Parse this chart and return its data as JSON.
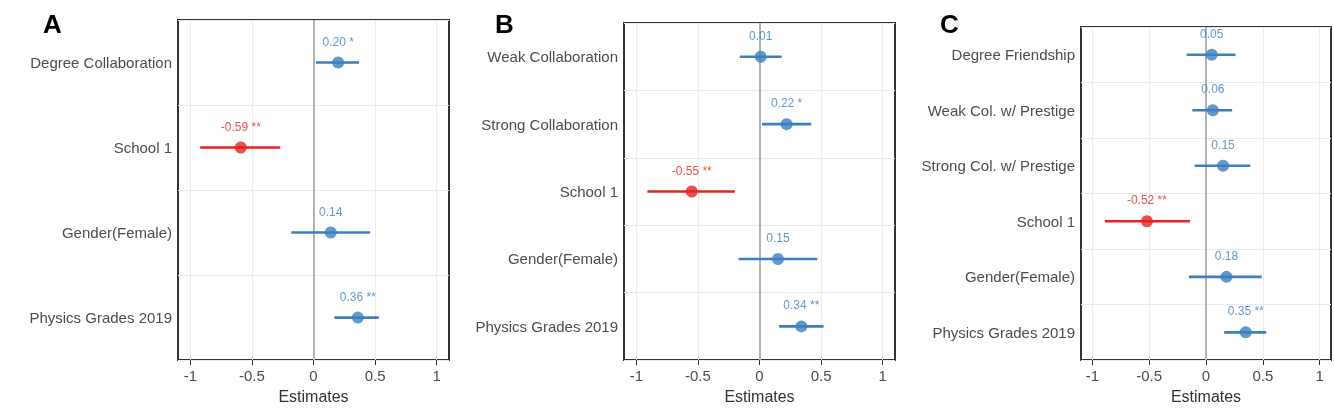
{
  "chart_data": [
    {
      "type": "scatter",
      "title": "A",
      "orientation": "horizontal",
      "marker": "circle",
      "grid": true,
      "xlabel": "Estimates",
      "xlim": [
        -1.1,
        1.1
      ],
      "xticks": [
        -1,
        -0.5,
        0,
        0.5,
        1
      ],
      "categories": [
        "Degree Collaboration",
        "School 1",
        "Gender(Female)",
        "Physics Grades 2019"
      ],
      "values": [
        0.2,
        -0.59,
        0.14,
        0.36
      ],
      "errors": [
        [
          0.02,
          0.37
        ],
        [
          -0.92,
          -0.27
        ],
        [
          -0.18,
          0.46
        ],
        [
          0.17,
          0.53
        ]
      ],
      "value_labels": [
        "0.20 *",
        "-0.59 **",
        "0.14",
        "0.36 **"
      ],
      "colors": [
        "#3a7fc1",
        "#e8211e",
        "#3a7fc1",
        "#3a7fc1"
      ],
      "ref_lines": [
        {
          "axis": "x",
          "value": 0,
          "color": "#b3b3b3"
        }
      ]
    },
    {
      "type": "scatter",
      "title": "B",
      "orientation": "horizontal",
      "marker": "circle",
      "grid": true,
      "xlabel": "Estimates",
      "xlim": [
        -1.1,
        1.1
      ],
      "xticks": [
        -1,
        -0.5,
        0,
        0.5,
        1
      ],
      "categories": [
        "Weak Collaboration",
        "Strong Collaboration",
        "School 1",
        "Gender(Female)",
        "Physics Grades 2019"
      ],
      "values": [
        0.01,
        0.22,
        -0.55,
        0.15,
        0.34
      ],
      "errors": [
        [
          -0.16,
          0.18
        ],
        [
          0.02,
          0.42
        ],
        [
          -0.91,
          -0.2
        ],
        [
          -0.17,
          0.47
        ],
        [
          0.16,
          0.52
        ]
      ],
      "value_labels": [
        "0.01",
        "0.22 *",
        "-0.55 **",
        "0.15",
        "0.34 **"
      ],
      "colors": [
        "#3a7fc1",
        "#3a7fc1",
        "#e8211e",
        "#3a7fc1",
        "#3a7fc1"
      ],
      "ref_lines": [
        {
          "axis": "x",
          "value": 0,
          "color": "#b3b3b3"
        }
      ]
    },
    {
      "type": "scatter",
      "title": "C",
      "orientation": "horizontal",
      "marker": "circle",
      "grid": true,
      "xlabel": "Estimates",
      "xlim": [
        -1.1,
        1.1
      ],
      "xticks": [
        -1,
        -0.5,
        0,
        0.5,
        1
      ],
      "categories": [
        "Degree Friendship",
        "Weak Col. w/ Prestige",
        "Strong Col. w/ Prestige",
        "School 1",
        "Gender(Female)",
        "Physics Grades 2019"
      ],
      "values": [
        0.05,
        0.06,
        0.15,
        -0.52,
        0.18,
        0.35
      ],
      "errors": [
        [
          -0.17,
          0.26
        ],
        [
          -0.12,
          0.23
        ],
        [
          -0.1,
          0.39
        ],
        [
          -0.89,
          -0.14
        ],
        [
          -0.15,
          0.49
        ],
        [
          0.16,
          0.53
        ]
      ],
      "value_labels": [
        "0.05",
        "0.06",
        "0.15",
        "-0.52 **",
        "0.18",
        "0.35 **"
      ],
      "colors": [
        "#3a7fc1",
        "#3a7fc1",
        "#3a7fc1",
        "#e8211e",
        "#3a7fc1",
        "#3a7fc1"
      ],
      "ref_lines": [
        {
          "axis": "x",
          "value": 0,
          "color": "#b3b3b3"
        }
      ]
    }
  ]
}
